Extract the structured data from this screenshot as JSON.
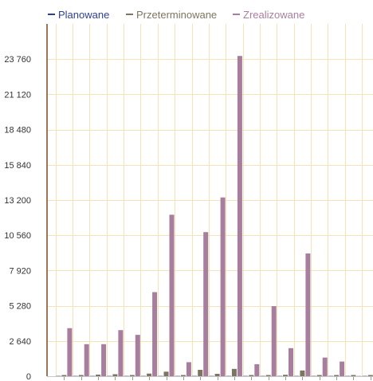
{
  "chart_data": {
    "type": "bar",
    "title": "",
    "xlabel": "",
    "ylabel": "",
    "ylim": [
      0,
      26400
    ],
    "yticks": [
      0,
      2640,
      5280,
      7920,
      10560,
      13200,
      15840,
      18480,
      21120,
      23760
    ],
    "ytick_labels": [
      "0",
      "2 640",
      "5 280",
      "7 920",
      "10 560",
      "13 200",
      "15 840",
      "18 480",
      "21 120",
      "23 760"
    ],
    "categories": [
      "",
      "",
      "",
      "",
      "",
      "",
      "",
      "",
      "",
      "",
      "",
      "",
      "",
      "",
      "",
      "",
      "",
      "",
      ""
    ],
    "grid": true,
    "legend_position": "top",
    "series": [
      {
        "name": "Planowane",
        "color": "#2f3f8f",
        "values": [
          0,
          0,
          0,
          0,
          0,
          0,
          0,
          0,
          0,
          0,
          0,
          0,
          0,
          0,
          0,
          0,
          0,
          0,
          0
        ]
      },
      {
        "name": "Przeterminowane",
        "color": "#7d7560",
        "values": [
          40,
          40,
          120,
          150,
          60,
          200,
          340,
          40,
          480,
          180,
          550,
          40,
          70,
          110,
          430,
          60,
          50,
          40,
          90
        ]
      },
      {
        "name": "Zrealizowane",
        "color": "#a77e9e",
        "values": [
          3600,
          2400,
          2400,
          3450,
          3100,
          6300,
          12100,
          1050,
          10800,
          13400,
          24000,
          900,
          5250,
          2100,
          9200,
          1400,
          1100,
          0,
          0
        ]
      }
    ]
  }
}
